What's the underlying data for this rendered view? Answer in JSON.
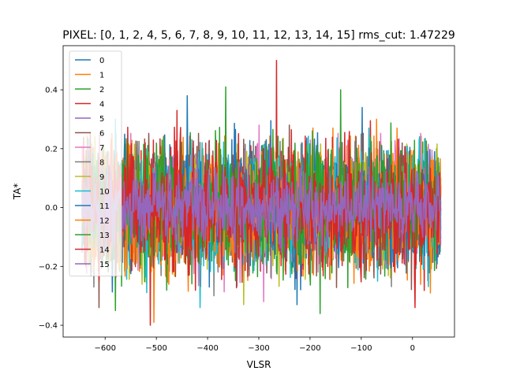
{
  "chart_data": {
    "type": "line",
    "title": "PIXEL: [0, 1, 2, 4, 5, 6, 7, 8, 9, 10, 11, 12, 13, 14, 15]   rms_cut: 1.47229",
    "xlabel": "VLSR",
    "ylabel": "TA*",
    "xlim": [
      -682,
      82
    ],
    "ylim": [
      -0.44,
      0.55
    ],
    "x_range": [
      -645,
      55
    ],
    "x_ticks": [
      -600,
      -500,
      -400,
      -300,
      -200,
      -100,
      0
    ],
    "y_ticks": [
      -0.4,
      -0.2,
      0.0,
      0.2,
      0.4
    ],
    "x_tick_labels": [
      "−600",
      "−500",
      "−400",
      "−300",
      "−200",
      "−100",
      "0"
    ],
    "y_tick_labels": [
      "−0.4",
      "−0.2",
      "0.0",
      "0.2",
      "0.4"
    ],
    "legend_position": "upper-left",
    "grid": false,
    "series": [
      {
        "name": "0",
        "color": "#1f77b4",
        "noise_rms": 0.1,
        "peak": {
          "x": -98,
          "y": 0.34
        },
        "trough": {
          "x": -640,
          "y": -0.17
        }
      },
      {
        "name": "1",
        "color": "#ff7f0e",
        "noise_rms": 0.1,
        "peak": {
          "x": -155,
          "y": 0.27
        },
        "trough": {
          "x": -505,
          "y": -0.39
        }
      },
      {
        "name": "2",
        "color": "#2ca02c",
        "noise_rms": 0.1,
        "peak": {
          "x": -365,
          "y": 0.41
        },
        "trough": {
          "x": -180,
          "y": -0.36
        }
      },
      {
        "name": "4",
        "color": "#d62728",
        "noise_rms": 0.1,
        "peak": {
          "x": -265,
          "y": 0.5
        },
        "trough": {
          "x": -512,
          "y": -0.4
        }
      },
      {
        "name": "5",
        "color": "#9467bd",
        "noise_rms": 0.06,
        "peak": {
          "x": -310,
          "y": 0.16
        },
        "trough": {
          "x": -200,
          "y": -0.15
        }
      },
      {
        "name": "6",
        "color": "#8c564b",
        "noise_rms": 0.1,
        "peak": {
          "x": -240,
          "y": 0.28
        },
        "trough": {
          "x": -612,
          "y": -0.34
        }
      },
      {
        "name": "7",
        "color": "#e377c2",
        "noise_rms": 0.1,
        "peak": {
          "x": -300,
          "y": 0.28
        },
        "trough": {
          "x": -290,
          "y": -0.32
        }
      },
      {
        "name": "8",
        "color": "#7f7f7f",
        "noise_rms": 0.1,
        "peak": {
          "x": -100,
          "y": 0.25
        },
        "trough": {
          "x": -388,
          "y": -0.3
        }
      },
      {
        "name": "9",
        "color": "#bcbd22",
        "noise_rms": 0.1,
        "peak": {
          "x": -620,
          "y": 0.24
        },
        "trough": {
          "x": -330,
          "y": -0.33
        }
      },
      {
        "name": "10",
        "color": "#17becf",
        "noise_rms": 0.1,
        "peak": {
          "x": -580,
          "y": 0.3
        },
        "trough": {
          "x": -415,
          "y": -0.34
        }
      },
      {
        "name": "11",
        "color": "#1f77b4",
        "noise_rms": 0.1,
        "peak": {
          "x": -440,
          "y": 0.38
        },
        "trough": {
          "x": -225,
          "y": -0.33
        }
      },
      {
        "name": "12",
        "color": "#ff7f0e",
        "noise_rms": 0.1,
        "peak": {
          "x": -70,
          "y": 0.3
        },
        "trough": {
          "x": 35,
          "y": -0.29
        }
      },
      {
        "name": "13",
        "color": "#2ca02c",
        "noise_rms": 0.1,
        "peak": {
          "x": -140,
          "y": 0.4
        },
        "trough": {
          "x": -580,
          "y": -0.35
        }
      },
      {
        "name": "14",
        "color": "#d62728",
        "noise_rms": 0.1,
        "peak": {
          "x": -460,
          "y": 0.33
        },
        "trough": {
          "x": 5,
          "y": -0.34
        }
      },
      {
        "name": "15",
        "color": "#9467bd",
        "noise_rms": 0.06,
        "peak": {
          "x": -420,
          "y": 0.17
        },
        "trough": {
          "x": -610,
          "y": -0.17
        }
      }
    ]
  }
}
